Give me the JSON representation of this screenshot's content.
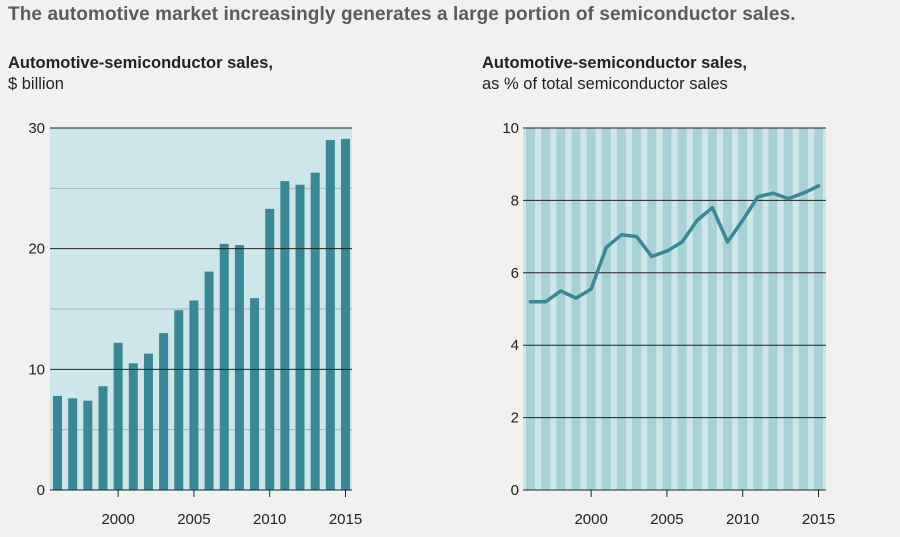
{
  "headline": "The automotive market increasingly generates a large portion of semiconductor sales.",
  "colors": {
    "background": "#f2f1ef",
    "plot_fill": "#cde6e9",
    "bar": "#3a8796",
    "light_bar": "#a7d1d6",
    "line": "#3a8796",
    "gridline": "#222222",
    "minor_gridline": "#9fb7ba"
  },
  "chart_data": [
    {
      "type": "bar",
      "title": "Automotive-semiconductor sales,",
      "subtitle": "$ billion",
      "x": [
        1996,
        1997,
        1998,
        1999,
        2000,
        2001,
        2002,
        2003,
        2004,
        2005,
        2006,
        2007,
        2008,
        2009,
        2010,
        2011,
        2012,
        2013,
        2014,
        2015
      ],
      "values": [
        7.8,
        7.6,
        7.4,
        8.6,
        12.2,
        10.5,
        11.3,
        13.0,
        14.9,
        15.7,
        18.1,
        20.4,
        20.3,
        15.9,
        23.3,
        25.6,
        25.3,
        26.3,
        29.0,
        29.1
      ],
      "ylim": [
        0,
        30
      ],
      "yticks": [
        0,
        10,
        20,
        30
      ],
      "minor_gridlines": [
        5,
        15,
        25
      ],
      "xticks": [
        2000,
        2005,
        2010,
        2015
      ],
      "xtick_labels": [
        "2000",
        "2005",
        "2010",
        "2015"
      ],
      "ytick_labels": [
        "0",
        "10",
        "20",
        "30"
      ],
      "grid": true
    },
    {
      "type": "line",
      "title": "Automotive-semiconductor sales,",
      "subtitle": "as % of total semiconductor sales",
      "x": [
        1996,
        1997,
        1998,
        1999,
        2000,
        2001,
        2002,
        2003,
        2004,
        2005,
        2006,
        2007,
        2008,
        2009,
        2010,
        2011,
        2012,
        2013,
        2014,
        2015
      ],
      "values": [
        5.2,
        5.2,
        5.5,
        5.3,
        5.55,
        6.7,
        7.05,
        7.0,
        6.45,
        6.6,
        6.85,
        7.45,
        7.8,
        6.85,
        7.45,
        8.1,
        8.2,
        8.05,
        8.2,
        8.4
      ],
      "ylim": [
        0,
        10
      ],
      "yticks": [
        0,
        2,
        4,
        6,
        8,
        10
      ],
      "xticks": [
        2000,
        2005,
        2010,
        2015
      ],
      "xtick_labels": [
        "2000",
        "2005",
        "2010",
        "2015"
      ],
      "ytick_labels": [
        "0",
        "2",
        "4",
        "6",
        "8",
        "10"
      ],
      "grid": true
    }
  ]
}
